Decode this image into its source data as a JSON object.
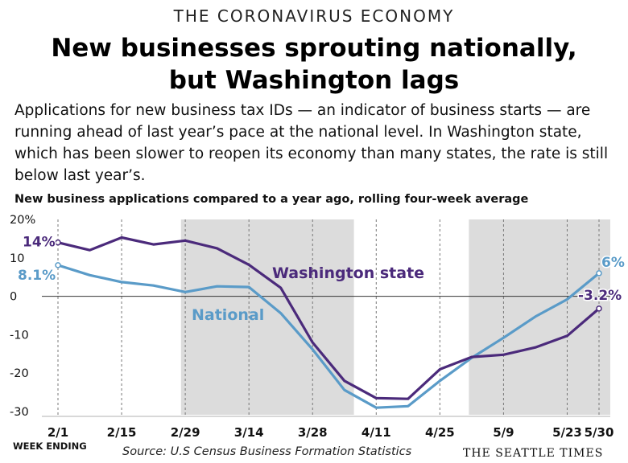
{
  "header": {
    "kicker": "THE CORONAVIRUS ECONOMY",
    "headline_line1": "New businesses sprouting nationally,",
    "headline_line2": "but Washington lags",
    "dek": "Applications for new business tax IDs — an indicator of business starts — are running ahead of last year’s pace at the national level. In Washington state, which has been slower to reopen its economy than many states, the rate is still below last year’s."
  },
  "chart_data": {
    "type": "line",
    "title": "New business applications compared to a year ago, rolling four-week average",
    "xlabel": "WEEK ENDING",
    "ylabel": "",
    "ylim": [
      -30,
      20
    ],
    "yticks": [
      20,
      10,
      0,
      -10,
      -20,
      -30
    ],
    "ytick_labels": [
      "20%",
      "10",
      "0",
      "-10",
      "-20",
      "-30"
    ],
    "x": [
      "2/1",
      "2/8",
      "2/15",
      "2/22",
      "2/29",
      "3/7",
      "3/14",
      "3/21",
      "3/28",
      "4/4",
      "4/11",
      "4/18",
      "4/25",
      "5/2",
      "5/9",
      "5/16",
      "5/23",
      "5/30"
    ],
    "x_tick_labels": [
      "2/1",
      "2/15",
      "2/29",
      "3/14",
      "3/28",
      "4/11",
      "4/25",
      "5/9",
      "5/23",
      "5/30"
    ],
    "shaded_ranges": [
      [
        "2/29",
        "4/4"
      ],
      [
        "5/2",
        "5/30"
      ]
    ],
    "grid": "vertical dashed at labeled dates",
    "series": [
      {
        "name": "Washington state",
        "color": "#4b2a7b",
        "values": [
          14,
          12,
          15.3,
          13.5,
          14.5,
          12.5,
          8.2,
          2.2,
          -12,
          -22,
          -26.5,
          -26.7,
          -19,
          -15.8,
          -15.2,
          -13.3,
          -10.3,
          -3.2
        ],
        "start_label": "14%",
        "end_label": "-3.2%"
      },
      {
        "name": "National",
        "color": "#5a9bc8",
        "values": [
          8.1,
          5.5,
          3.7,
          2.8,
          1.1,
          2.6,
          2.4,
          -4.4,
          -13.8,
          -24.4,
          -29,
          -28.6,
          -22,
          -16,
          -10.8,
          -5.3,
          -0.8,
          6
        ],
        "start_label": "8.1%",
        "end_label": "6%"
      }
    ]
  },
  "footer": {
    "source": "Source: U.S Census Business Formation Statistics",
    "credit": "THE SEATTLE TIMES"
  }
}
